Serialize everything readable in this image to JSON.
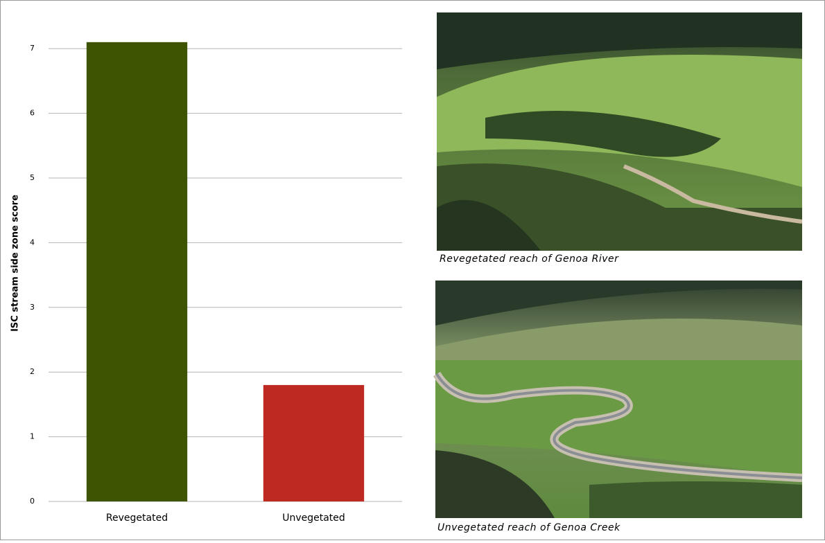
{
  "chart_data": {
    "type": "bar",
    "y_label": "ISC stream side zone score",
    "categories": [
      "Revegetated",
      "Unvegetated"
    ],
    "values": [
      7.1,
      1.8
    ],
    "colors": [
      "#3f5403",
      "#be2a22"
    ],
    "ylim": [
      0,
      7.5
    ],
    "yticks": [
      0,
      1,
      2,
      3,
      4,
      5,
      6,
      7
    ],
    "grid": true
  },
  "photos": {
    "captions": [
      "Revegetated reach of  Genoa River",
      "Unvegetated reach of Genoa Creek"
    ]
  }
}
